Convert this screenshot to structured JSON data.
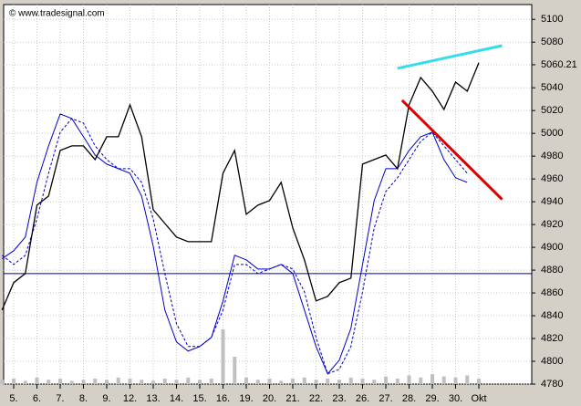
{
  "chart_data": {
    "type": "line",
    "watermark": "© www.tradesignal.com",
    "categories": [
      null,
      "5.",
      null,
      "6.",
      null,
      "7.",
      null,
      "8.",
      null,
      "9.",
      null,
      "12.",
      null,
      "13.",
      null,
      "14.",
      null,
      "15.",
      null,
      "16.",
      null,
      "19.",
      null,
      "20.",
      null,
      "21.",
      null,
      "22.",
      null,
      "23.",
      null,
      "26.",
      null,
      "27.",
      null,
      "28.",
      null,
      "29.",
      null,
      "30.",
      null,
      "Okt",
      null,
      null
    ],
    "ylim": [
      4780,
      5113
    ],
    "yticks": [
      4780,
      4800,
      4820,
      4840,
      4860,
      4880,
      4900,
      4920,
      4940,
      4960,
      4980,
      5000,
      5020,
      5040,
      5060.21,
      5080,
      5100
    ],
    "grid": true,
    "series": [
      {
        "name": "Price",
        "color": "#000000",
        "dash": false,
        "values": [
          4845,
          4869,
          4877,
          4937,
          4945,
          4985,
          4989,
          4989,
          4977,
          4997,
          4997,
          5025,
          4997,
          4933,
          4921,
          4909,
          4905,
          4905,
          4905,
          4965,
          4985,
          4929,
          4937,
          4941,
          4957,
          4917,
          4889,
          4853,
          4857,
          4869,
          4873,
          4973,
          4977,
          4981,
          4969,
          5025,
          5049,
          5037,
          5021,
          5045,
          5037,
          5062,
          null,
          null
        ]
      },
      {
        "name": "MA fast",
        "color": "#0000c8",
        "dash": false,
        "values": [
          4890,
          4897,
          4909,
          4957,
          4989,
          5017,
          5013,
          4997,
          4981,
          4973,
          4969,
          4965,
          4945,
          4901,
          4845,
          4817,
          4809,
          4813,
          4821,
          4853,
          4893,
          4889,
          4881,
          4881,
          4885,
          4877,
          4845,
          4813,
          4789,
          4801,
          4829,
          4885,
          4941,
          4969,
          4969,
          4985,
          4997,
          5001,
          4977,
          4961,
          4957,
          null,
          null,
          null
        ]
      },
      {
        "name": "MA slow",
        "color": "#0000c8",
        "dash": true,
        "values": [
          4893,
          4885,
          4893,
          4925,
          4965,
          5001,
          5013,
          5009,
          4989,
          4977,
          4969,
          4969,
          4957,
          4925,
          4877,
          4833,
          4813,
          4813,
          4821,
          4845,
          4885,
          4885,
          4877,
          4881,
          4885,
          4881,
          4861,
          4821,
          4789,
          4793,
          4813,
          4861,
          4917,
          4949,
          4961,
          4977,
          4993,
          5001,
          4989,
          4977,
          4965,
          null,
          null,
          null
        ]
      }
    ],
    "volume": {
      "color": "#c0c0c0",
      "values": [
        4,
        5,
        3,
        6,
        4,
        5,
        3,
        4,
        5,
        4,
        6,
        5,
        4,
        3,
        5,
        4,
        6,
        4,
        5,
        50,
        25,
        6,
        4,
        5,
        3,
        5,
        6,
        4,
        5,
        4,
        6,
        5,
        4,
        7,
        5,
        8,
        6,
        9,
        7,
        6,
        8,
        5,
        null,
        null
      ]
    },
    "hline": {
      "value": 4877,
      "color": "#0000a0"
    },
    "trendlines": [
      {
        "color": "#33ddee",
        "start": [
          34,
          5057
        ],
        "end": [
          43,
          5077
        ]
      },
      {
        "color": "#dd0000",
        "start": [
          34.4,
          5029
        ],
        "end": [
          43,
          4942
        ]
      }
    ]
  }
}
